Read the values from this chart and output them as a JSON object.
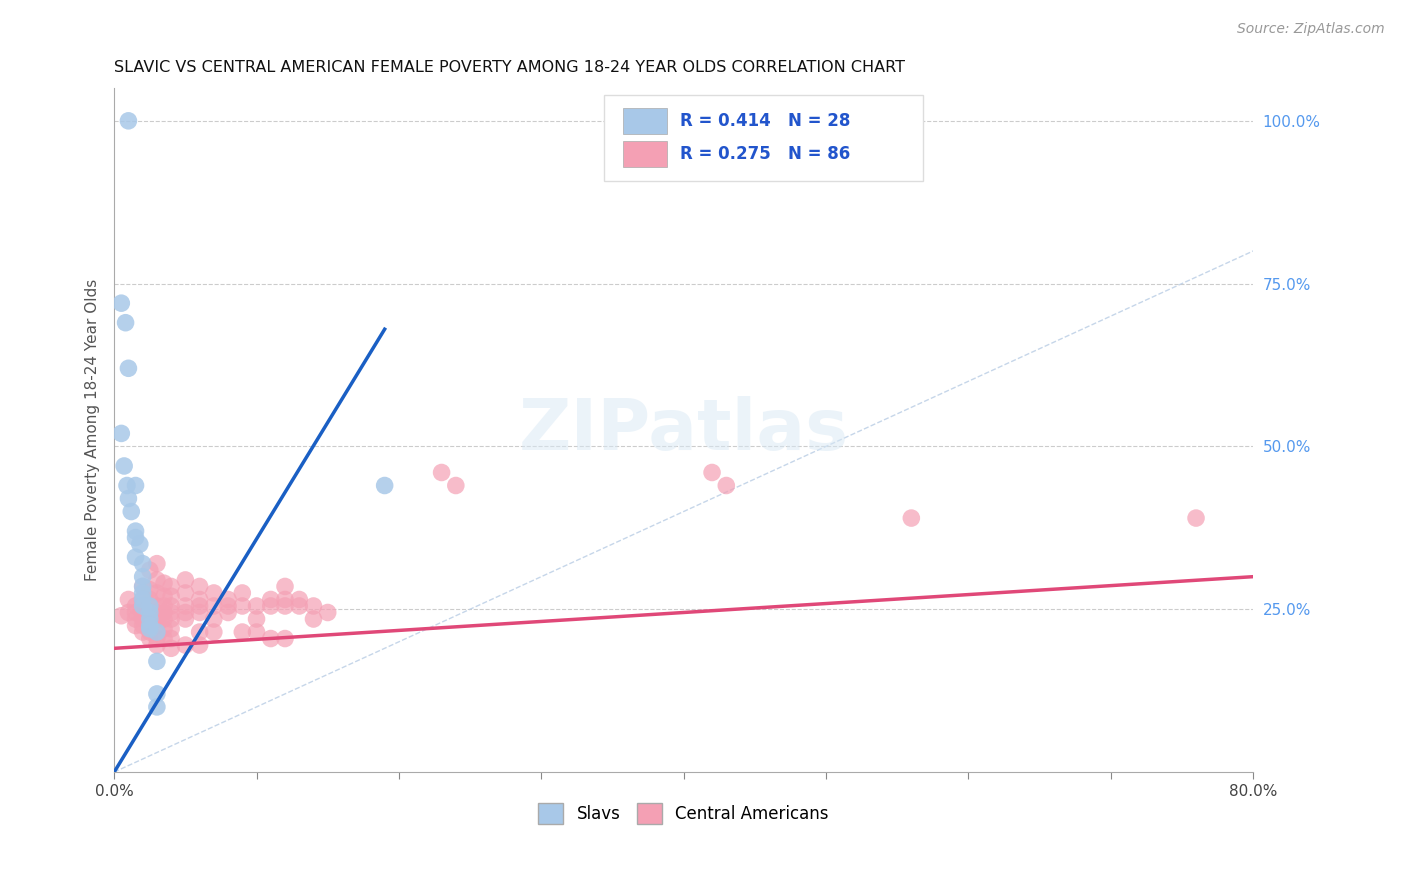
{
  "title": "SLAVIC VS CENTRAL AMERICAN FEMALE POVERTY AMONG 18-24 YEAR OLDS CORRELATION CHART",
  "source": "Source: ZipAtlas.com",
  "ylabel": "Female Poverty Among 18-24 Year Olds",
  "xlim": [
    0.0,
    0.8
  ],
  "ylim": [
    0.0,
    1.05
  ],
  "xticks": [
    0.0,
    0.1,
    0.2,
    0.3,
    0.4,
    0.5,
    0.6,
    0.7,
    0.8
  ],
  "xticklabels": [
    "0.0%",
    "",
    "",
    "",
    "",
    "",
    "",
    "",
    "80.0%"
  ],
  "yticks_right": [
    0.25,
    0.5,
    0.75,
    1.0
  ],
  "yticklabels_right": [
    "25.0%",
    "50.0%",
    "75.0%",
    "100.0%"
  ],
  "slavs_color": "#a8c8e8",
  "central_color": "#f4a0b4",
  "slavs_line_color": "#1a5fc4",
  "central_line_color": "#e04878",
  "diagonal_color": "#b8cce4",
  "slavs_scatter": [
    [
      0.01,
      1.0
    ],
    [
      0.005,
      0.72
    ],
    [
      0.008,
      0.69
    ],
    [
      0.01,
      0.62
    ],
    [
      0.005,
      0.52
    ],
    [
      0.007,
      0.47
    ],
    [
      0.009,
      0.44
    ],
    [
      0.01,
      0.42
    ],
    [
      0.012,
      0.4
    ],
    [
      0.015,
      0.37
    ],
    [
      0.015,
      0.44
    ],
    [
      0.015,
      0.36
    ],
    [
      0.018,
      0.35
    ],
    [
      0.015,
      0.33
    ],
    [
      0.02,
      0.32
    ],
    [
      0.02,
      0.3
    ],
    [
      0.02,
      0.285
    ],
    [
      0.02,
      0.275
    ],
    [
      0.02,
      0.265
    ],
    [
      0.02,
      0.255
    ],
    [
      0.025,
      0.255
    ],
    [
      0.025,
      0.245
    ],
    [
      0.025,
      0.235
    ],
    [
      0.025,
      0.225
    ],
    [
      0.025,
      0.22
    ],
    [
      0.03,
      0.215
    ],
    [
      0.03,
      0.17
    ],
    [
      0.03,
      0.12
    ],
    [
      0.03,
      0.1
    ],
    [
      0.19,
      0.44
    ]
  ],
  "central_scatter": [
    [
      0.005,
      0.24
    ],
    [
      0.01,
      0.265
    ],
    [
      0.01,
      0.245
    ],
    [
      0.015,
      0.255
    ],
    [
      0.015,
      0.245
    ],
    [
      0.015,
      0.235
    ],
    [
      0.015,
      0.225
    ],
    [
      0.02,
      0.285
    ],
    [
      0.02,
      0.265
    ],
    [
      0.02,
      0.255
    ],
    [
      0.02,
      0.245
    ],
    [
      0.02,
      0.235
    ],
    [
      0.02,
      0.225
    ],
    [
      0.02,
      0.215
    ],
    [
      0.025,
      0.31
    ],
    [
      0.025,
      0.28
    ],
    [
      0.025,
      0.265
    ],
    [
      0.025,
      0.255
    ],
    [
      0.025,
      0.245
    ],
    [
      0.025,
      0.235
    ],
    [
      0.025,
      0.225
    ],
    [
      0.025,
      0.215
    ],
    [
      0.025,
      0.205
    ],
    [
      0.03,
      0.32
    ],
    [
      0.03,
      0.295
    ],
    [
      0.03,
      0.275
    ],
    [
      0.03,
      0.255
    ],
    [
      0.03,
      0.245
    ],
    [
      0.03,
      0.235
    ],
    [
      0.03,
      0.225
    ],
    [
      0.03,
      0.205
    ],
    [
      0.03,
      0.195
    ],
    [
      0.035,
      0.29
    ],
    [
      0.035,
      0.27
    ],
    [
      0.035,
      0.255
    ],
    [
      0.035,
      0.245
    ],
    [
      0.035,
      0.235
    ],
    [
      0.035,
      0.22
    ],
    [
      0.035,
      0.205
    ],
    [
      0.04,
      0.285
    ],
    [
      0.04,
      0.27
    ],
    [
      0.04,
      0.255
    ],
    [
      0.04,
      0.245
    ],
    [
      0.04,
      0.235
    ],
    [
      0.04,
      0.22
    ],
    [
      0.04,
      0.205
    ],
    [
      0.04,
      0.19
    ],
    [
      0.05,
      0.295
    ],
    [
      0.05,
      0.275
    ],
    [
      0.05,
      0.255
    ],
    [
      0.05,
      0.245
    ],
    [
      0.05,
      0.235
    ],
    [
      0.05,
      0.195
    ],
    [
      0.06,
      0.285
    ],
    [
      0.06,
      0.265
    ],
    [
      0.06,
      0.255
    ],
    [
      0.06,
      0.245
    ],
    [
      0.06,
      0.215
    ],
    [
      0.06,
      0.195
    ],
    [
      0.07,
      0.275
    ],
    [
      0.07,
      0.255
    ],
    [
      0.07,
      0.235
    ],
    [
      0.07,
      0.215
    ],
    [
      0.08,
      0.265
    ],
    [
      0.08,
      0.255
    ],
    [
      0.08,
      0.245
    ],
    [
      0.09,
      0.275
    ],
    [
      0.09,
      0.255
    ],
    [
      0.09,
      0.215
    ],
    [
      0.1,
      0.255
    ],
    [
      0.1,
      0.235
    ],
    [
      0.1,
      0.215
    ],
    [
      0.11,
      0.265
    ],
    [
      0.11,
      0.255
    ],
    [
      0.11,
      0.205
    ],
    [
      0.12,
      0.285
    ],
    [
      0.12,
      0.265
    ],
    [
      0.12,
      0.255
    ],
    [
      0.12,
      0.205
    ],
    [
      0.13,
      0.265
    ],
    [
      0.13,
      0.255
    ],
    [
      0.14,
      0.255
    ],
    [
      0.14,
      0.235
    ],
    [
      0.15,
      0.245
    ],
    [
      0.23,
      0.46
    ],
    [
      0.24,
      0.44
    ],
    [
      0.42,
      0.46
    ],
    [
      0.43,
      0.44
    ],
    [
      0.56,
      0.39
    ],
    [
      0.76,
      0.39
    ]
  ],
  "slavs_trendline": [
    [
      0.0,
      0.0
    ],
    [
      0.19,
      0.68
    ]
  ],
  "central_trendline": [
    [
      0.0,
      0.19
    ],
    [
      0.8,
      0.3
    ]
  ],
  "diagonal_line": [
    [
      0.0,
      0.0
    ],
    [
      1.0,
      1.0
    ]
  ]
}
